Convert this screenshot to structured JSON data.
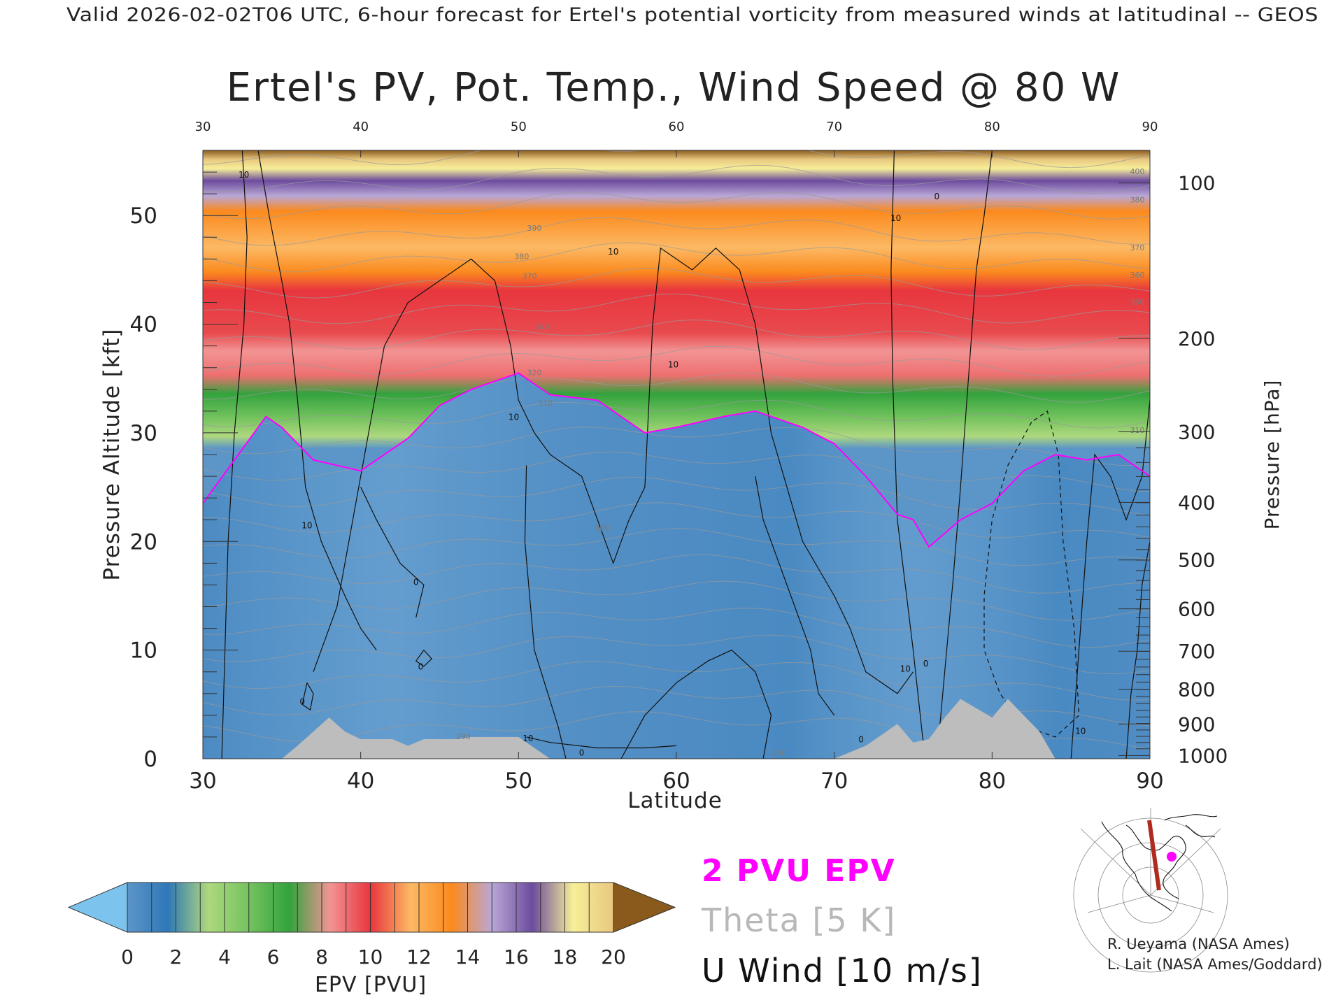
{
  "header": {
    "valid_line": "Valid 2026-02-02T06 UTC, 6-hour forecast for Ertel's potential vorticity from measured winds at latitudinal -- GEOS"
  },
  "chart_data": {
    "type": "heatmap",
    "title": "Ertel's PV, Pot. Temp., Wind Speed @ 80 W",
    "xlabel": "Latitude",
    "ylabel_left": "Pressure Altitude [kft]",
    "ylabel_right": "Pressure [hPa]",
    "xlim": [
      30,
      90
    ],
    "ylim": [
      0,
      56
    ],
    "x_ticks": [
      "30",
      "40",
      "50",
      "60",
      "70",
      "80",
      "90"
    ],
    "x_ticks_top": [
      "30",
      "40",
      "50",
      "60",
      "70",
      "80",
      "90"
    ],
    "y_ticks": [
      "0",
      "10",
      "20",
      "30",
      "40",
      "50"
    ],
    "pressure_ticks": [
      {
        "hpa": "100",
        "kft": 53.0
      },
      {
        "hpa": "200",
        "kft": 38.7
      },
      {
        "hpa": "300",
        "kft": 30.1
      },
      {
        "hpa": "400",
        "kft": 23.6
      },
      {
        "hpa": "500",
        "kft": 18.3
      },
      {
        "hpa": "600",
        "kft": 13.8
      },
      {
        "hpa": "700",
        "kft": 9.9
      },
      {
        "hpa": "800",
        "kft": 6.4
      },
      {
        "hpa": "900",
        "kft": 3.2
      },
      {
        "hpa": "1000",
        "kft": 0.3
      }
    ],
    "tropopause_2pvu_kft": [
      [
        30,
        23.5
      ],
      [
        32,
        27.5
      ],
      [
        34,
        31.5
      ],
      [
        35,
        30.5
      ],
      [
        37,
        27.5
      ],
      [
        40,
        26.5
      ],
      [
        43,
        29.5
      ],
      [
        45,
        32.5
      ],
      [
        47,
        34.0
      ],
      [
        50,
        35.5
      ],
      [
        52,
        33.5
      ],
      [
        55,
        33.0
      ],
      [
        58,
        30.0
      ],
      [
        60,
        30.5
      ],
      [
        63,
        31.5
      ],
      [
        65,
        32.0
      ],
      [
        68,
        30.5
      ],
      [
        70,
        29.0
      ],
      [
        72,
        26.0
      ],
      [
        74,
        22.5
      ],
      [
        75,
        22.0
      ],
      [
        76,
        19.5
      ],
      [
        78,
        22.0
      ],
      [
        80,
        23.5
      ],
      [
        82,
        26.5
      ],
      [
        84,
        28.0
      ],
      [
        86,
        27.5
      ],
      [
        88,
        28.0
      ],
      [
        90,
        26.0
      ]
    ],
    "orography_kft": [
      [
        30,
        0
      ],
      [
        35,
        0
      ],
      [
        36,
        1.2
      ],
      [
        37,
        2.5
      ],
      [
        38,
        3.8
      ],
      [
        39,
        2.5
      ],
      [
        40,
        1.8
      ],
      [
        42,
        1.8
      ],
      [
        43,
        1.2
      ],
      [
        44,
        1.8
      ],
      [
        46,
        1.8
      ],
      [
        47,
        2.0
      ],
      [
        50,
        2.0
      ],
      [
        51,
        1.0
      ],
      [
        52,
        0
      ],
      [
        70,
        0
      ],
      [
        72,
        1.2
      ],
      [
        74,
        3.2
      ],
      [
        75,
        1.5
      ],
      [
        76,
        1.8
      ],
      [
        77,
        3.8
      ],
      [
        78,
        5.5
      ],
      [
        80,
        3.8
      ],
      [
        81,
        5.5
      ],
      [
        82,
        4.0
      ],
      [
        83,
        2.5
      ],
      [
        84,
        0
      ],
      [
        90,
        0
      ]
    ],
    "colorbar": {
      "label": "EPV [PVU]",
      "ticks": [
        "0",
        "2",
        "4",
        "6",
        "8",
        "10",
        "12",
        "14",
        "16",
        "18",
        "20"
      ],
      "colors": [
        "#5c95c8",
        "#2f78b8",
        "#aed87e",
        "#74c35e",
        "#33a33e",
        "#f29494",
        "#e8363e",
        "#fcb964",
        "#fb8a1e",
        "#b9a7d6",
        "#6c4b9e",
        "#f7ef98",
        "#e8c880"
      ],
      "under_color": "#7cc4ee",
      "over_color": "#8a5a1d"
    },
    "legend": [
      {
        "label": "2 PVU EPV",
        "color": "#ff00ff"
      },
      {
        "label": "Theta [5 K]",
        "color": "#b8b8b8"
      },
      {
        "label": "U Wind [10 m/s]",
        "color": "#111111"
      }
    ],
    "theta_labels": [
      {
        "text": "390",
        "x": 51.0,
        "y": 48.6
      },
      {
        "text": "380",
        "x": 50.2,
        "y": 46.0
      },
      {
        "text": "370",
        "x": 50.7,
        "y": 44.2
      },
      {
        "text": "340",
        "x": 51.5,
        "y": 39.5
      },
      {
        "text": "320",
        "x": 51.0,
        "y": 35.3
      },
      {
        "text": "310",
        "x": 51.7,
        "y": 32.5
      },
      {
        "text": "300",
        "x": 55.3,
        "y": 21.0
      },
      {
        "text": "290",
        "x": 46.5,
        "y": 1.8
      },
      {
        "text": "250",
        "x": 66.5,
        "y": 0.3
      },
      {
        "text": "400",
        "x": 89.2,
        "y": 53.8
      },
      {
        "text": "380",
        "x": 89.2,
        "y": 51.2
      },
      {
        "text": "370",
        "x": 89.2,
        "y": 46.8
      },
      {
        "text": "360",
        "x": 89.2,
        "y": 44.3
      },
      {
        "text": "350",
        "x": 89.2,
        "y": 41.8
      },
      {
        "text": "310",
        "x": 89.2,
        "y": 30.0
      }
    ],
    "wind_labels": [
      {
        "text": "10",
        "x": 32.6,
        "y": 53.5
      },
      {
        "text": "10",
        "x": 49.7,
        "y": 31.2
      },
      {
        "text": "10",
        "x": 36.6,
        "y": 21.2
      },
      {
        "text": "0",
        "x": 43.5,
        "y": 16.0
      },
      {
        "text": "0",
        "x": 43.8,
        "y": 8.2
      },
      {
        "text": "0",
        "x": 36.3,
        "y": 5.0
      },
      {
        "text": "10",
        "x": 56.0,
        "y": 46.4
      },
      {
        "text": "10",
        "x": 59.8,
        "y": 36.0
      },
      {
        "text": "10",
        "x": 73.9,
        "y": 49.5
      },
      {
        "text": "0",
        "x": 76.5,
        "y": 51.5
      },
      {
        "text": "10",
        "x": 74.5,
        "y": 8.0
      },
      {
        "text": "0",
        "x": 75.8,
        "y": 8.5
      },
      {
        "text": "0",
        "x": 71.7,
        "y": 1.5
      },
      {
        "text": "10",
        "x": 50.6,
        "y": 1.6
      },
      {
        "text": "10",
        "x": 85.6,
        "y": 2.3
      },
      {
        "text": "0",
        "x": 54.0,
        "y": 0.3
      }
    ]
  },
  "map_inset": {
    "marker_color": "#ff00ff",
    "track_color": "#b02a1e"
  },
  "credits": [
    "R. Ueyama (NASA Ames)",
    "L. Lait (NASA Ames/Goddard)"
  ]
}
